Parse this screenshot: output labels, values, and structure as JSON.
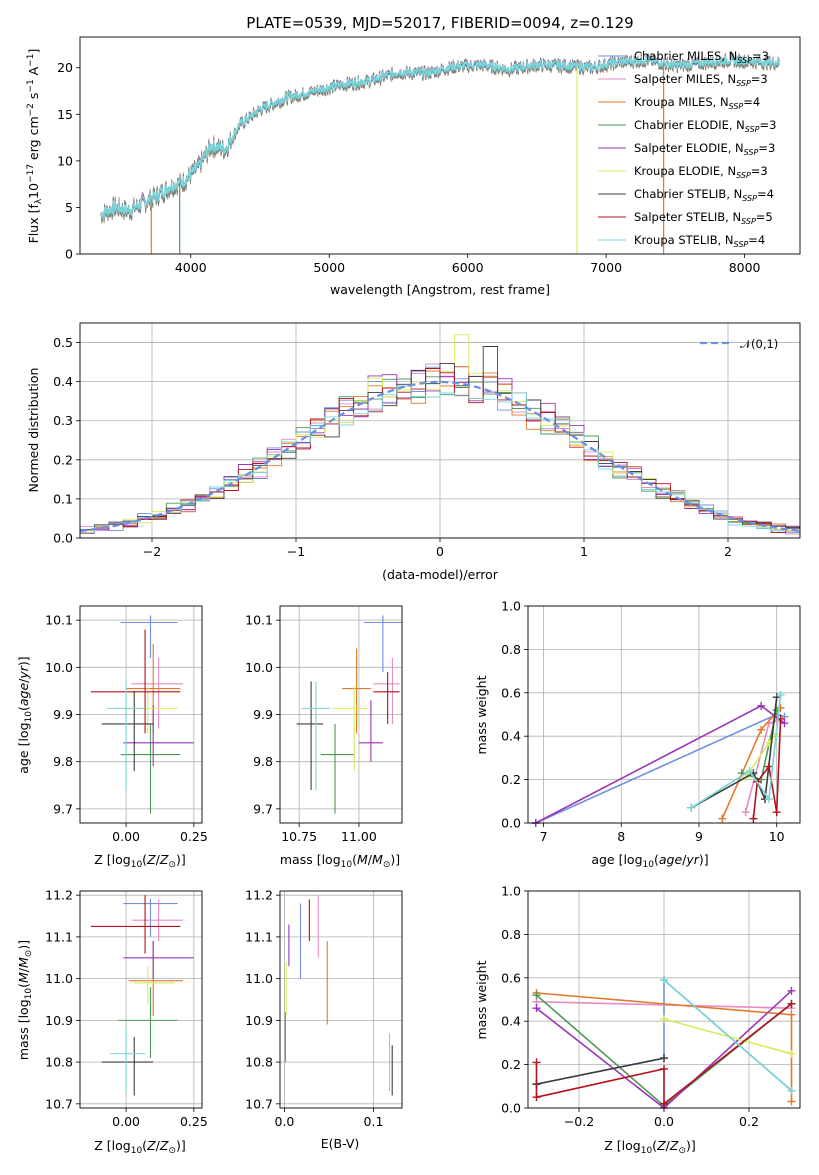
{
  "figure": {
    "title": "PLATE=0539, MJD=52017, FIBERID=0094, z=0.129"
  },
  "models": [
    {
      "name": "Chabrier MILES, N_SSP=3",
      "base": "Chabrier MILES, N",
      "sub": "SSP",
      "eq": "=3",
      "color": "#6f8fe0"
    },
    {
      "name": "Salpeter MILES, N_SSP=3",
      "base": "Salpeter MILES, N",
      "sub": "SSP",
      "eq": "=3",
      "color": "#e88bc4"
    },
    {
      "name": "Kroupa MILES, N_SSP=4",
      "base": "Kroupa MILES, N",
      "sub": "SSP",
      "eq": "=4",
      "color": "#e07b2e"
    },
    {
      "name": "Chabrier ELODIE, N_SSP=3",
      "base": "Chabrier ELODIE, N",
      "sub": "SSP",
      "eq": "=3",
      "color": "#4d9a55"
    },
    {
      "name": "Salpeter ELODIE, N_SSP=3",
      "base": "Salpeter ELODIE, N",
      "sub": "SSP",
      "eq": "=3",
      "color": "#9b35b8"
    },
    {
      "name": "Kroupa ELODIE, N_SSP=3",
      "base": "Kroupa ELODIE, N",
      "sub": "SSP",
      "eq": "=3",
      "color": "#d9ec5a"
    },
    {
      "name": "Chabrier STELIB, N_SSP=4",
      "base": "Chabrier STELIB, N",
      "sub": "SSP",
      "eq": "=4",
      "color": "#3d3d3d"
    },
    {
      "name": "Salpeter STELIB, N_SSP=5",
      "base": "Salpeter STELIB, N",
      "sub": "SSP",
      "eq": "=5",
      "color": "#b3121e"
    },
    {
      "name": "Kroupa STELIB, N_SSP=4",
      "base": "Kroupa STELIB, N",
      "sub": "SSP",
      "eq": "=4",
      "color": "#78d6d6"
    }
  ],
  "chart_data": [
    {
      "id": "spectrum",
      "type": "line",
      "xlabel": "wavelength [Angstrom, rest frame]",
      "ylabel": "Flux [f_λ 10^-17 erg cm^-2 s^-1 A^-1]",
      "xlim": [
        3200,
        8400
      ],
      "ylim": [
        0,
        23.3
      ],
      "xticks": [
        4000,
        5000,
        6000,
        7000,
        8000
      ],
      "yticks": [
        0,
        5,
        10,
        15,
        20
      ],
      "data_color": "#808080",
      "x_range": [
        3350,
        8250
      ],
      "envelope": [
        [
          3350,
          4.2
        ],
        [
          3450,
          5.0
        ],
        [
          3550,
          4.6
        ],
        [
          3650,
          5.4
        ],
        [
          3750,
          6.2
        ],
        [
          3850,
          7.2
        ],
        [
          3950,
          7.8
        ],
        [
          4050,
          9.2
        ],
        [
          4150,
          11.6
        ],
        [
          4250,
          11.2
        ],
        [
          4350,
          13.8
        ],
        [
          4500,
          15.5
        ],
        [
          4700,
          16.8
        ],
        [
          4900,
          17.5
        ],
        [
          5100,
          18.2
        ],
        [
          5300,
          18.6
        ],
        [
          5500,
          19.5
        ],
        [
          5700,
          19.4
        ],
        [
          5900,
          20.1
        ],
        [
          6100,
          20.3
        ],
        [
          6300,
          19.8
        ],
        [
          6500,
          20.3
        ],
        [
          6700,
          20.2
        ],
        [
          6900,
          20.0
        ],
        [
          7100,
          20.6
        ],
        [
          7300,
          20.8
        ],
        [
          7500,
          20.2
        ],
        [
          7700,
          20.5
        ],
        [
          7900,
          20.8
        ],
        [
          8100,
          20.6
        ],
        [
          8250,
          20.5
        ]
      ],
      "dips": [
        {
          "x": 3715,
          "color": "#e07b2e"
        },
        {
          "x": 3920,
          "color": "#4d9a55"
        },
        {
          "x": 6790,
          "color": "#d9ec5a"
        },
        {
          "x": 7415,
          "color": "#e07b2e"
        }
      ]
    },
    {
      "id": "residuals",
      "type": "histogram",
      "xlabel": "(data-model)/error",
      "ylabel": "Normed distribution",
      "xlim": [
        -2.5,
        2.5
      ],
      "ylim": [
        0,
        0.55
      ],
      "xticks": [
        -2,
        -1,
        0,
        1,
        2
      ],
      "yticks": [
        0.0,
        0.1,
        0.2,
        0.3,
        0.4,
        0.5
      ],
      "bin_width": 0.1,
      "reference": {
        "label": "𝒩(0,1)",
        "color": "#6f8fe0"
      }
    },
    {
      "id": "age-vs-Z",
      "type": "errorbar",
      "xlabel": "Z [log10(Z/Z⊙)]",
      "ylabel": "age [log10(age/yr)]",
      "xlim": [
        -0.17,
        0.28
      ],
      "ylim": [
        9.67,
        10.13
      ],
      "xticks": [
        0.0,
        0.25
      ],
      "yticks": [
        9.7,
        9.8,
        9.9,
        10.0,
        10.1
      ],
      "points": [
        {
          "m": 0,
          "x": 0.09,
          "xlo": -0.02,
          "xhi": 0.19,
          "y": 10.095,
          "ylo": 10.02,
          "yhi": 10.11
        },
        {
          "m": 1,
          "x": 0.12,
          "xlo": 0.02,
          "xhi": 0.21,
          "y": 9.965,
          "ylo": 9.87,
          "yhi": 10.02
        },
        {
          "m": 2,
          "x": 0.1,
          "xlo": 0.0,
          "xhi": 0.2,
          "y": 9.955,
          "ylo": 9.86,
          "yhi": 10.05
        },
        {
          "m": 3,
          "x": 0.09,
          "xlo": -0.02,
          "xhi": 0.2,
          "y": 9.815,
          "ylo": 9.69,
          "yhi": 9.88
        },
        {
          "m": 4,
          "x": 0.1,
          "xlo": -0.01,
          "xhi": 0.25,
          "y": 9.84,
          "ylo": 9.79,
          "yhi": 9.92
        },
        {
          "m": 5,
          "x": 0.08,
          "xlo": -0.02,
          "xhi": 0.19,
          "y": 9.913,
          "ylo": 9.86,
          "yhi": 9.96
        },
        {
          "m": 6,
          "x": 0.03,
          "xlo": -0.09,
          "xhi": 0.1,
          "y": 9.88,
          "ylo": 9.78,
          "yhi": 9.95
        },
        {
          "m": 7,
          "x": 0.07,
          "xlo": -0.13,
          "xhi": 0.2,
          "y": 9.948,
          "ylo": 9.86,
          "yhi": 10.08
        },
        {
          "m": 8,
          "x": 0.0,
          "xlo": -0.07,
          "xhi": 0.07,
          "y": 9.913,
          "ylo": 9.74,
          "yhi": 9.97
        }
      ]
    },
    {
      "id": "age-vs-mass",
      "type": "errorbar",
      "xlabel": "mass [log10(M/M⊙)]",
      "ylabel": "",
      "xlim": [
        10.67,
        11.18
      ],
      "ylim": [
        9.67,
        10.13
      ],
      "xticks": [
        10.75,
        11.0
      ],
      "yticks": [
        9.7,
        9.8,
        9.9,
        10.0,
        10.1
      ],
      "points": [
        {
          "m": 0,
          "x": 11.1,
          "xlo": 11.02,
          "xhi": 11.18,
          "y": 10.095,
          "ylo": 9.99,
          "yhi": 10.11
        },
        {
          "m": 1,
          "x": 11.14,
          "xlo": 11.06,
          "xhi": 11.17,
          "y": 9.965,
          "ylo": 9.88,
          "yhi": 10.02
        },
        {
          "m": 2,
          "x": 10.99,
          "xlo": 10.93,
          "xhi": 11.05,
          "y": 9.955,
          "ylo": 9.86,
          "yhi": 10.04
        },
        {
          "m": 3,
          "x": 10.9,
          "xlo": 10.84,
          "xhi": 10.98,
          "y": 9.815,
          "ylo": 9.69,
          "yhi": 9.88
        },
        {
          "m": 4,
          "x": 11.05,
          "xlo": 11.0,
          "xhi": 11.1,
          "y": 9.84,
          "ylo": 9.8,
          "yhi": 9.93
        },
        {
          "m": 5,
          "x": 10.98,
          "xlo": 10.89,
          "xhi": 11.04,
          "y": 9.913,
          "ylo": 9.78,
          "yhi": 9.96
        },
        {
          "m": 6,
          "x": 10.8,
          "xlo": 10.74,
          "xhi": 10.85,
          "y": 9.88,
          "ylo": 9.74,
          "yhi": 9.97
        },
        {
          "m": 7,
          "x": 11.12,
          "xlo": 11.06,
          "xhi": 11.17,
          "y": 9.948,
          "ylo": 9.88,
          "yhi": 9.99
        },
        {
          "m": 8,
          "x": 10.82,
          "xlo": 10.76,
          "xhi": 10.88,
          "y": 9.913,
          "ylo": 9.74,
          "yhi": 9.97
        }
      ]
    },
    {
      "id": "weight-vs-age",
      "type": "line",
      "xlabel": "age [log10(age/yr)]",
      "ylabel": "mass weight",
      "xlim": [
        6.8,
        10.3
      ],
      "ylim": [
        0,
        1
      ],
      "xticks": [
        7,
        8,
        9,
        10
      ],
      "yticks": [
        0.0,
        0.2,
        0.4,
        0.6,
        0.8,
        1.0
      ],
      "series": [
        {
          "m": 0,
          "points": [
            [
              6.9,
              0.0
            ],
            [
              10.0,
              0.5
            ],
            [
              10.1,
              0.49
            ]
          ]
        },
        {
          "m": 1,
          "points": [
            [
              9.6,
              0.05
            ],
            [
              9.9,
              0.46
            ],
            [
              10.0,
              0.47
            ]
          ]
        },
        {
          "m": 2,
          "points": [
            [
              9.3,
              0.02
            ],
            [
              9.8,
              0.43
            ],
            [
              10.05,
              0.53
            ]
          ]
        },
        {
          "m": 3,
          "points": [
            [
              9.55,
              0.23
            ],
            [
              9.8,
              0.2
            ],
            [
              10.0,
              0.52
            ]
          ]
        },
        {
          "m": 4,
          "points": [
            [
              6.9,
              0.0
            ],
            [
              9.8,
              0.54
            ],
            [
              10.1,
              0.46
            ]
          ]
        },
        {
          "m": 5,
          "points": [
            [
              9.6,
              0.21
            ],
            [
              9.9,
              0.37
            ],
            [
              10.0,
              0.41
            ]
          ]
        },
        {
          "m": 6,
          "points": [
            [
              8.9,
              0.07
            ],
            [
              9.7,
              0.23
            ],
            [
              9.85,
              0.11
            ],
            [
              10.0,
              0.58
            ]
          ]
        },
        {
          "m": 7,
          "points": [
            [
              9.7,
              0.02
            ],
            [
              9.75,
              0.19
            ],
            [
              9.9,
              0.26
            ],
            [
              10.0,
              0.05
            ],
            [
              10.05,
              0.48
            ]
          ]
        },
        {
          "m": 8,
          "points": [
            [
              8.9,
              0.07
            ],
            [
              9.65,
              0.24
            ],
            [
              9.9,
              0.11
            ],
            [
              10.05,
              0.59
            ]
          ]
        }
      ]
    },
    {
      "id": "mass-vs-Z",
      "type": "errorbar",
      "xlabel": "Z [log10(Z/Z⊙)]",
      "ylabel": "mass [log10(M/M⊙)]",
      "xlim": [
        -0.17,
        0.28
      ],
      "ylim": [
        10.69,
        11.21
      ],
      "xticks": [
        0.0,
        0.25
      ],
      "yticks": [
        10.7,
        10.8,
        10.9,
        11.0,
        11.1,
        11.2
      ],
      "points": [
        {
          "m": 0,
          "x": 0.09,
          "xlo": -0.01,
          "xhi": 0.19,
          "y": 11.18,
          "ylo": 11.1,
          "yhi": 11.19
        },
        {
          "m": 1,
          "x": 0.12,
          "xlo": 0.02,
          "xhi": 0.21,
          "y": 11.14,
          "ylo": 11.09,
          "yhi": 11.19
        },
        {
          "m": 2,
          "x": 0.1,
          "xlo": 0.01,
          "xhi": 0.21,
          "y": 10.995,
          "ylo": 10.91,
          "yhi": 11.09
        },
        {
          "m": 3,
          "x": 0.09,
          "xlo": -0.03,
          "xhi": 0.19,
          "y": 10.9,
          "ylo": 10.81,
          "yhi": 10.98
        },
        {
          "m": 4,
          "x": 0.1,
          "xlo": -0.01,
          "xhi": 0.25,
          "y": 11.05,
          "ylo": 11.0,
          "yhi": 11.09
        },
        {
          "m": 5,
          "x": 0.08,
          "xlo": 0.03,
          "xhi": 0.18,
          "y": 10.99,
          "ylo": 10.94,
          "yhi": 11.03
        },
        {
          "m": 6,
          "x": 0.03,
          "xlo": -0.09,
          "xhi": 0.1,
          "y": 10.8,
          "ylo": 10.72,
          "yhi": 10.86
        },
        {
          "m": 7,
          "x": 0.07,
          "xlo": -0.13,
          "xhi": 0.2,
          "y": 11.125,
          "ylo": 11.06,
          "yhi": 11.2
        },
        {
          "m": 8,
          "x": 0.0,
          "xlo": -0.06,
          "xhi": 0.07,
          "y": 10.82,
          "ylo": 10.73,
          "yhi": 10.88
        }
      ]
    },
    {
      "id": "mass-vs-ebv",
      "type": "errorbar",
      "xlabel": "E(B-V)",
      "ylabel": "",
      "xlim": [
        -0.005,
        0.132
      ],
      "ylim": [
        10.69,
        11.21
      ],
      "xticks": [
        0.0,
        0.1
      ],
      "yticks": [
        10.7,
        10.8,
        10.9,
        11.0,
        11.1,
        11.2
      ],
      "points": [
        {
          "m": 0,
          "x": 0.018,
          "xlo": 0.018,
          "xhi": 0.018,
          "y": 11.1,
          "ylo": 11.0,
          "yhi": 11.18
        },
        {
          "m": 1,
          "x": 0.038,
          "xlo": 0.038,
          "xhi": 0.038,
          "y": 11.12,
          "ylo": 11.05,
          "yhi": 11.2
        },
        {
          "m": 2,
          "x": 0.048,
          "xlo": 0.048,
          "xhi": 0.048,
          "y": 10.99,
          "ylo": 10.89,
          "yhi": 11.09
        },
        {
          "m": 3,
          "x": 0.001,
          "xlo": 0.001,
          "xhi": 0.001,
          "y": 10.85,
          "ylo": 10.8,
          "yhi": 10.92
        },
        {
          "m": 4,
          "x": 0.005,
          "xlo": 0.005,
          "xhi": 0.005,
          "y": 11.08,
          "ylo": 11.03,
          "yhi": 11.13
        },
        {
          "m": 5,
          "x": 0.002,
          "xlo": 0.002,
          "xhi": 0.002,
          "y": 10.96,
          "ylo": 10.91,
          "yhi": 11.04
        },
        {
          "m": 6,
          "x": 0.121,
          "xlo": 0.121,
          "xhi": 0.121,
          "y": 10.78,
          "ylo": 10.72,
          "yhi": 10.84
        },
        {
          "m": 7,
          "x": 0.028,
          "xlo": 0.028,
          "xhi": 0.028,
          "y": 11.14,
          "ylo": 11.09,
          "yhi": 11.19
        },
        {
          "m": 8,
          "x": 0.118,
          "xlo": 0.118,
          "xhi": 0.118,
          "y": 10.8,
          "ylo": 10.73,
          "yhi": 10.87
        }
      ]
    },
    {
      "id": "weight-vs-Z",
      "type": "line",
      "xlabel": "Z [log10(Z/Z⊙)]",
      "ylabel": "mass weight",
      "xlim": [
        -0.32,
        0.32
      ],
      "ylim": [
        0,
        1
      ],
      "xticks": [
        -0.2,
        0.0,
        0.2
      ],
      "yticks": [
        0.0,
        0.2,
        0.4,
        0.6,
        0.8,
        1.0
      ],
      "series": [
        {
          "m": 0,
          "points": [
            [
              -0.3,
              0.11
            ],
            [
              0.0,
              0.23
            ],
            [
              0.0,
              0.59
            ],
            [
              0.3,
              0.08
            ]
          ]
        },
        {
          "m": 1,
          "points": [
            [
              -0.3,
              0.49
            ],
            [
              0.3,
              0.46
            ]
          ]
        },
        {
          "m": 2,
          "points": [
            [
              -0.3,
              0.53
            ],
            [
              0.3,
              0.43
            ],
            [
              0.3,
              0.03
            ]
          ]
        },
        {
          "m": 3,
          "points": [
            [
              -0.3,
              0.52
            ],
            [
              0.0,
              0.01
            ],
            [
              0.3,
              0.48
            ]
          ]
        },
        {
          "m": 4,
          "points": [
            [
              -0.3,
              0.46
            ],
            [
              0.0,
              0.0
            ],
            [
              0.3,
              0.54
            ]
          ]
        },
        {
          "m": 5,
          "points": [
            [
              0.0,
              0.41
            ],
            [
              0.3,
              0.25
            ]
          ]
        },
        {
          "m": 6,
          "points": [
            [
              -0.3,
              0.11
            ],
            [
              0.0,
              0.23
            ]
          ]
        },
        {
          "m": 7,
          "points": [
            [
              -0.3,
              0.21
            ],
            [
              -0.3,
              0.05
            ],
            [
              0.0,
              0.18
            ],
            [
              0.0,
              0.02
            ],
            [
              0.3,
              0.48
            ]
          ]
        },
        {
          "m": 8,
          "points": [
            [
              0.0,
              0.59
            ],
            [
              0.3,
              0.08
            ]
          ]
        }
      ]
    }
  ]
}
